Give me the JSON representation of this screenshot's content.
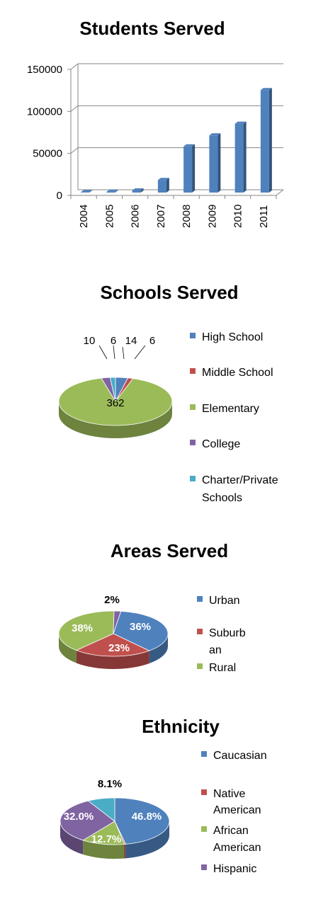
{
  "chart_data": [
    {
      "type": "bar",
      "title": "Students Served",
      "categories": [
        "2004",
        "2005",
        "2006",
        "2007",
        "2008",
        "2009",
        "2010",
        "2011"
      ],
      "values": [
        500,
        1000,
        2500,
        15000,
        55000,
        68000,
        82000,
        122000
      ],
      "ylim": [
        0,
        150000
      ],
      "yticks": [
        "0",
        "50000",
        "100000",
        "150000"
      ],
      "grid": true,
      "color": "#4f81bd"
    },
    {
      "type": "pie",
      "title": "Schools Served",
      "slices": [
        {
          "label": "High School",
          "value": 14,
          "display": "14",
          "color": "#4f81bd"
        },
        {
          "label": "Middle School",
          "value": 6,
          "display": "6",
          "color": "#c0504d"
        },
        {
          "label": "Elementary",
          "value": 362,
          "display": "362",
          "color": "#9bbb59"
        },
        {
          "label": "College",
          "value": 10,
          "display": "10",
          "color": "#8064a2"
        },
        {
          "label": "Charter/Private Schools",
          "value": 6,
          "display": "6",
          "color": "#4bacc6"
        }
      ],
      "legend": [
        "High School",
        "Middle School",
        "Elementary",
        "College",
        "Charter/Private",
        "Schools"
      ],
      "legend_position": "right"
    },
    {
      "type": "pie",
      "title": "Areas Served",
      "slices": [
        {
          "label": "Urban",
          "value": 36,
          "display": "36%",
          "color": "#4f81bd"
        },
        {
          "label": "Suburban",
          "value": 23,
          "display": "23%",
          "color": "#c0504d"
        },
        {
          "label": "Rural",
          "value": 38,
          "display": "38%",
          "color": "#9bbb59"
        },
        {
          "label": "",
          "value": 2,
          "display": "2%",
          "color": "#8064a2"
        }
      ],
      "legend": [
        "Urban",
        "Suburb",
        "an",
        "Rural"
      ],
      "legend_position": "right"
    },
    {
      "type": "pie",
      "title": "Ethnicity",
      "slices": [
        {
          "label": "Caucasian",
          "value": 46.8,
          "display": "46.8%",
          "color": "#4f81bd"
        },
        {
          "label": "Native American",
          "value": 0.4,
          "display": "",
          "color": "#c0504d"
        },
        {
          "label": "African American",
          "value": 12.7,
          "display": "12.7%",
          "color": "#9bbb59"
        },
        {
          "label": "Hispanic",
          "value": 32.0,
          "display": "32.0%",
          "color": "#8064a2"
        },
        {
          "label": "",
          "value": 8.1,
          "display": "8.1%",
          "color": "#4bacc6"
        }
      ],
      "legend": [
        "Caucasian",
        "Native",
        "American",
        "African",
        "American",
        "Hispanic"
      ],
      "legend_position": "right"
    }
  ]
}
